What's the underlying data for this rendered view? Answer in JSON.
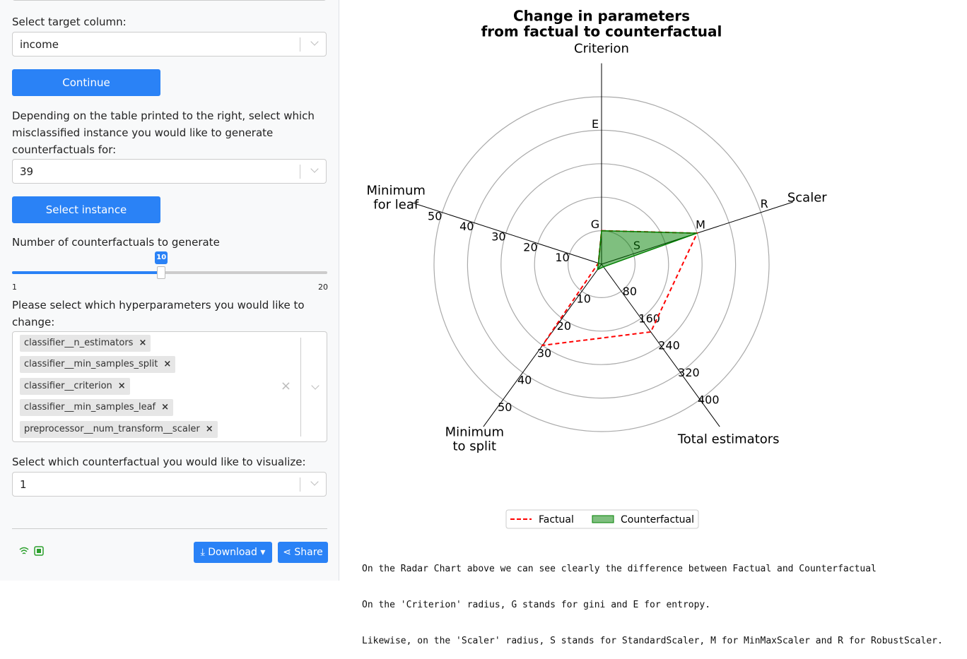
{
  "sidebar": {
    "target_label": "Select target column:",
    "target_value": "income",
    "continue_button": "Continue",
    "instance_label": "Depending on the table printed to the right, select which misclassified instance you would like to generate counterfactuals for:",
    "instance_value": "39",
    "select_button": "Select instance",
    "slider": {
      "label": "Number of counterfactuals to generate",
      "min": 1,
      "max": 20,
      "value": 10
    },
    "hyper_label": "Please select which hyperparameters you would like to change:",
    "hyperparameters": [
      "classifier__n_estimators",
      "classifier__min_samples_split",
      "classifier__criterion",
      "classifier__min_samples_leaf",
      "preprocessor__num_transform__scaler"
    ],
    "visualize_label": "Select which counterfactual you would like to visualize:",
    "visualize_value": "1",
    "download_button": "Download",
    "share_button": "Share"
  },
  "chart_data": {
    "type": "radar",
    "title": [
      "Change in parameters",
      "from factual to counterfactual"
    ],
    "categories": [
      "Criterion",
      "Scaler",
      "Total estimators",
      "Minimum\nto split",
      "Minimum\nfor leaf"
    ],
    "axes": [
      {
        "lim": [
          0,
          5
        ],
        "ticks": [
          {
            "value": 1,
            "label": "G"
          },
          {
            "value": 4,
            "label": "E"
          }
        ]
      },
      {
        "lim": [
          0,
          5
        ],
        "ticks": [
          {
            "value": 1,
            "label": "S"
          },
          {
            "value": 3,
            "label": "M"
          },
          {
            "value": 5,
            "label": "R"
          }
        ]
      },
      {
        "lim": [
          0,
          400
        ],
        "ticks": [
          80,
          160,
          240,
          320,
          400
        ]
      },
      {
        "lim": [
          0,
          50
        ],
        "ticks": [
          10,
          20,
          30,
          40,
          50
        ]
      },
      {
        "lim": [
          0,
          50
        ],
        "ticks": [
          10,
          20,
          30,
          40,
          50
        ]
      }
    ],
    "series": [
      {
        "name": "Factual",
        "color": "red",
        "values": [
          1,
          3,
          200,
          30,
          1
        ]
      },
      {
        "name": "Counterfactual",
        "color": "green",
        "values": [
          1,
          3,
          8,
          2,
          1
        ]
      }
    ],
    "grid": true,
    "legend": "bottom"
  },
  "notes": [
    "On the Radar Chart above we can see clearly the difference between Factual and Counterfactual",
    "On the 'Criterion' radius, G stands for gini and E for entropy.",
    "Likewise, on the 'Scaler' radius, S stands for StandardScaler, M for MinMaxScaler and R for RobustScaler."
  ]
}
